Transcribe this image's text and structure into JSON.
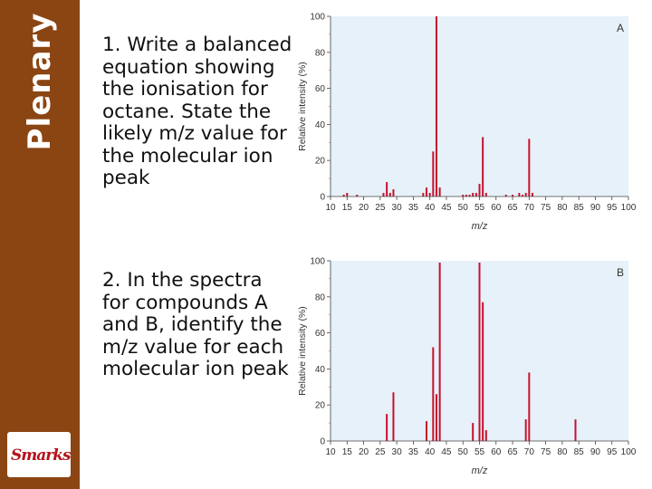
{
  "sidebar": {
    "title": "Plenary",
    "logo_text": "Smarks"
  },
  "questions": [
    {
      "text": "1. Write a balanced equation showing the ionisation for octane. State the likely m/z value for the molecular ion peak"
    },
    {
      "text": "2. In the spectra for compounds A and B, identify the m/z value for each molecular ion peak"
    }
  ],
  "colors": {
    "sidebar": "#8b4513",
    "peak": "#c8102e",
    "plot_bg": "#e6f1f9"
  },
  "chart_data": [
    {
      "type": "bar",
      "label": "A",
      "xlabel": "m/z",
      "ylabel": "Relative intensity (%)",
      "xlim": [
        10,
        100
      ],
      "ylim": [
        0,
        100
      ],
      "xticks": [
        10,
        15,
        20,
        25,
        30,
        35,
        40,
        45,
        50,
        55,
        60,
        65,
        70,
        75,
        80,
        85,
        90,
        95,
        100
      ],
      "yticks": [
        0,
        20,
        40,
        60,
        80,
        100
      ],
      "peaks": [
        {
          "x": 14,
          "y": 1
        },
        {
          "x": 15,
          "y": 2
        },
        {
          "x": 18,
          "y": 1
        },
        {
          "x": 26,
          "y": 2
        },
        {
          "x": 27,
          "y": 8
        },
        {
          "x": 28,
          "y": 2
        },
        {
          "x": 29,
          "y": 4
        },
        {
          "x": 38,
          "y": 2
        },
        {
          "x": 39,
          "y": 5
        },
        {
          "x": 40,
          "y": 2
        },
        {
          "x": 41,
          "y": 25
        },
        {
          "x": 42,
          "y": 100
        },
        {
          "x": 43,
          "y": 5
        },
        {
          "x": 50,
          "y": 1
        },
        {
          "x": 51,
          "y": 1
        },
        {
          "x": 52,
          "y": 1
        },
        {
          "x": 53,
          "y": 2
        },
        {
          "x": 54,
          "y": 2
        },
        {
          "x": 55,
          "y": 7
        },
        {
          "x": 56,
          "y": 33
        },
        {
          "x": 57,
          "y": 2
        },
        {
          "x": 63,
          "y": 1
        },
        {
          "x": 65,
          "y": 1
        },
        {
          "x": 67,
          "y": 2
        },
        {
          "x": 68,
          "y": 1
        },
        {
          "x": 69,
          "y": 2
        },
        {
          "x": 70,
          "y": 32
        },
        {
          "x": 71,
          "y": 2
        }
      ]
    },
    {
      "type": "bar",
      "label": "B",
      "xlabel": "m/z",
      "ylabel": "Relative intensity (%)",
      "xlim": [
        10,
        100
      ],
      "ylim": [
        0,
        100
      ],
      "xticks": [
        10,
        15,
        20,
        25,
        30,
        35,
        40,
        45,
        50,
        55,
        60,
        65,
        70,
        75,
        80,
        85,
        90,
        95,
        100
      ],
      "yticks": [
        0,
        20,
        40,
        60,
        80,
        100
      ],
      "peaks": [
        {
          "x": 27,
          "y": 15
        },
        {
          "x": 29,
          "y": 27
        },
        {
          "x": 39,
          "y": 11
        },
        {
          "x": 41,
          "y": 52
        },
        {
          "x": 42,
          "y": 26
        },
        {
          "x": 43,
          "y": 99
        },
        {
          "x": 53,
          "y": 10
        },
        {
          "x": 55,
          "y": 99
        },
        {
          "x": 56,
          "y": 77
        },
        {
          "x": 57,
          "y": 6
        },
        {
          "x": 69,
          "y": 12
        },
        {
          "x": 70,
          "y": 38
        },
        {
          "x": 84,
          "y": 12
        }
      ]
    }
  ]
}
